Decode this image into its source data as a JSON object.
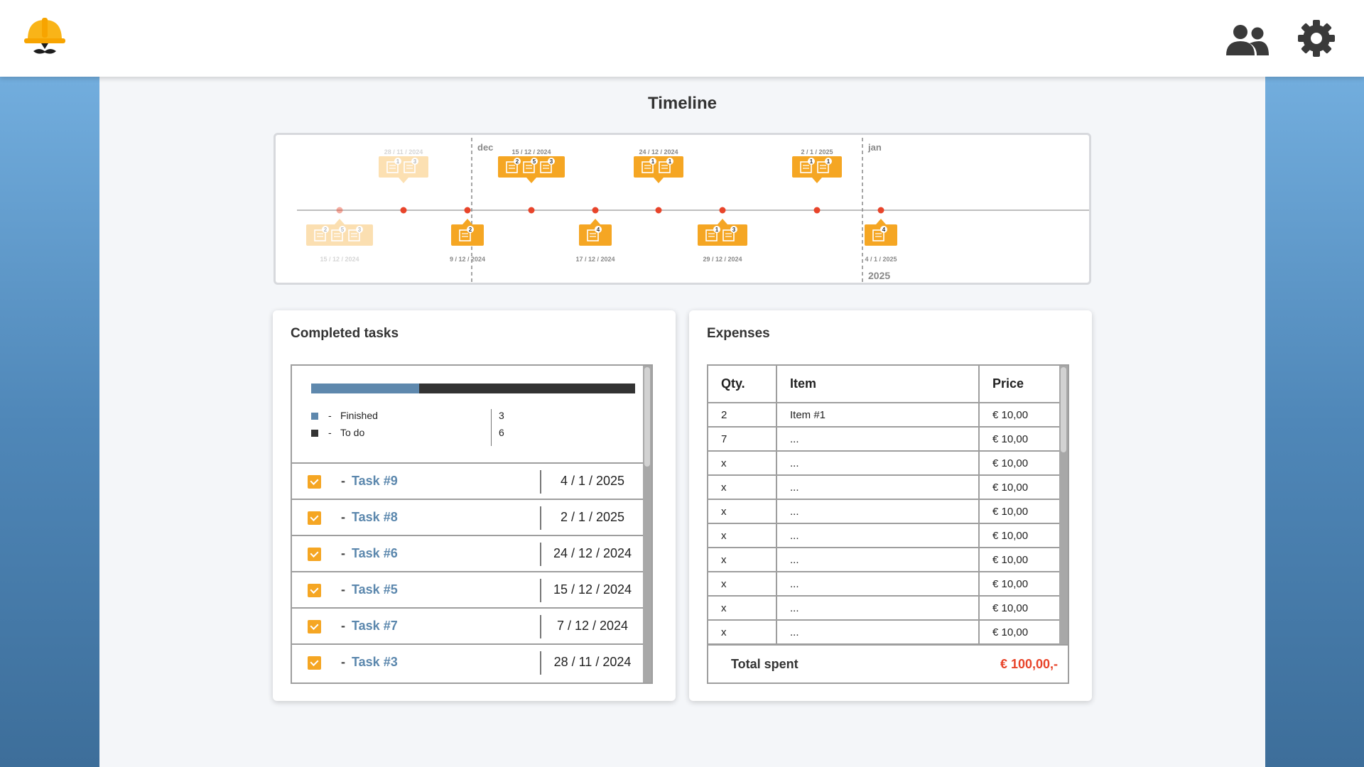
{
  "header": {
    "logo": "construction-helmet-logo",
    "users_icon": "users-icon",
    "settings_icon": "gear-icon"
  },
  "page": {
    "title": "Timeline"
  },
  "timeline": {
    "month_labels": [
      "dec",
      "jan"
    ],
    "year_label": "2025",
    "events_top": [
      {
        "date": "28 / 11 / 2024",
        "badges": [
          "1",
          "3"
        ],
        "faded": true
      },
      {
        "date": "15 / 12 / 2024",
        "badges": [
          "2",
          "5",
          "3"
        ]
      },
      {
        "date": "24 / 12 / 2024",
        "badges": [
          "1",
          "1"
        ]
      },
      {
        "date": "2 / 1 / 2025",
        "badges": [
          "1",
          "1"
        ]
      }
    ],
    "events_bottom": [
      {
        "date": "15 / 12 / 2024",
        "badges": [
          "2",
          "5",
          "3"
        ],
        "faded": true
      },
      {
        "date": "9 / 12 / 2024",
        "badges": [
          "2"
        ]
      },
      {
        "date": "17 / 12 / 2024",
        "badges": [
          "4"
        ]
      },
      {
        "date": "29 / 12 / 2024",
        "badges": [
          "1",
          "3"
        ]
      },
      {
        "date": "4 / 1 / 2025",
        "badges": [
          "4"
        ]
      }
    ],
    "colors": {
      "accent": "#f5a623",
      "dot": "#e8442a",
      "line": "#aaaaaa"
    }
  },
  "tasks_card": {
    "title": "Completed tasks",
    "progress": {
      "finished": 3,
      "todo": 6,
      "fraction_finished": 0.3333
    },
    "legend": [
      {
        "dash": "-",
        "label": "Finished",
        "count": "3",
        "color": "#5e88ad"
      },
      {
        "dash": "-",
        "label": "To do",
        "count": "6",
        "color": "#333333"
      }
    ],
    "tasks": [
      {
        "dash": "-",
        "name": "Task #9",
        "date": "4 / 1 / 2025"
      },
      {
        "dash": "-",
        "name": "Task #8",
        "date": "2 / 1 / 2025"
      },
      {
        "dash": "-",
        "name": "Task #6",
        "date": "24 / 12 / 2024"
      },
      {
        "dash": "-",
        "name": "Task #5",
        "date": "15 / 12 / 2024"
      },
      {
        "dash": "-",
        "name": "Task #7",
        "date": "7 / 12 / 2024"
      },
      {
        "dash": "-",
        "name": "Task #3",
        "date": "28 / 11 / 2024"
      }
    ]
  },
  "expenses_card": {
    "title": "Expenses",
    "headers": {
      "qty": "Qty.",
      "item": "Item",
      "price": "Price"
    },
    "rows": [
      {
        "qty": "2",
        "item": "Item #1",
        "price": "€ 10,00"
      },
      {
        "qty": "7",
        "item": "...",
        "price": "€ 10,00"
      },
      {
        "qty": "x",
        "item": "...",
        "price": "€ 10,00"
      },
      {
        "qty": "x",
        "item": "...",
        "price": "€ 10,00"
      },
      {
        "qty": "x",
        "item": "...",
        "price": "€ 10,00"
      },
      {
        "qty": "x",
        "item": "...",
        "price": "€ 10,00"
      },
      {
        "qty": "x",
        "item": "...",
        "price": "€ 10,00"
      },
      {
        "qty": "x",
        "item": "...",
        "price": "€ 10,00"
      },
      {
        "qty": "x",
        "item": "...",
        "price": "€ 10,00"
      },
      {
        "qty": "x",
        "item": "...",
        "price": "€ 10,00"
      }
    ],
    "total_label": "Total spent",
    "total_value": "€ 100,00,-",
    "total_color": "#e8442a"
  }
}
